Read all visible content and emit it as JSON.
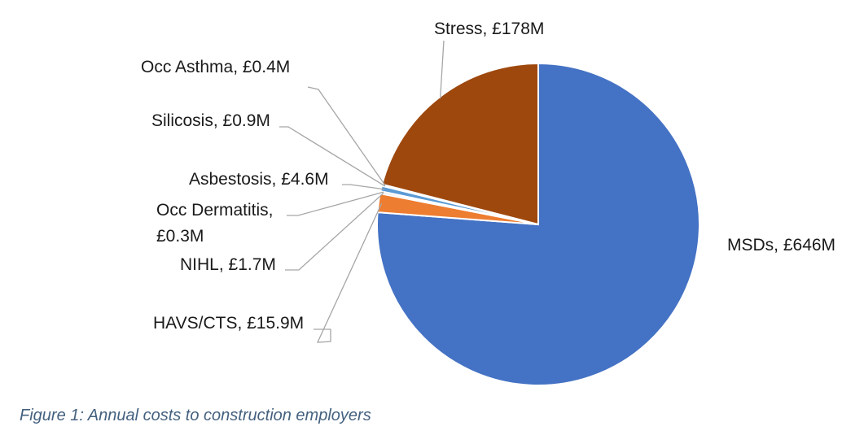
{
  "caption": "Figure 1: Annual costs to construction employers",
  "chart_data": {
    "type": "pie",
    "title": "",
    "slices": [
      {
        "name": "MSDs",
        "value": 646,
        "label": "MSDs, £646M",
        "color": "#4472c4"
      },
      {
        "name": "HAVS/CTS",
        "value": 15.9,
        "label": "HAVS/CTS, £15.9M",
        "color": "#ed7d31"
      },
      {
        "name": "NIHL",
        "value": 1.7,
        "label": "NIHL, £1.7M",
        "color": "#a5a5a5"
      },
      {
        "name": "Occ Dermatitis",
        "value": 0.3,
        "label": [
          "Occ Dermatitis,",
          "£0.3M"
        ],
        "color": "#ffc000"
      },
      {
        "name": "Asbestosis",
        "value": 4.6,
        "label": "Asbestosis, £4.6M",
        "color": "#5b9bd5"
      },
      {
        "name": "Silicosis",
        "value": 0.9,
        "label": "Silicosis, £0.9M",
        "color": "#70ad47"
      },
      {
        "name": "Occ Asthma",
        "value": 0.4,
        "label": "Occ Asthma, £0.4M",
        "color": "#264478"
      },
      {
        "name": "Stress",
        "value": 178,
        "label": "Stress, £178M",
        "color": "#9e480e"
      }
    ],
    "start_angle_deg": 0,
    "direction": "clockwise",
    "legend": "none",
    "data_labels": "outside with leader lines"
  }
}
